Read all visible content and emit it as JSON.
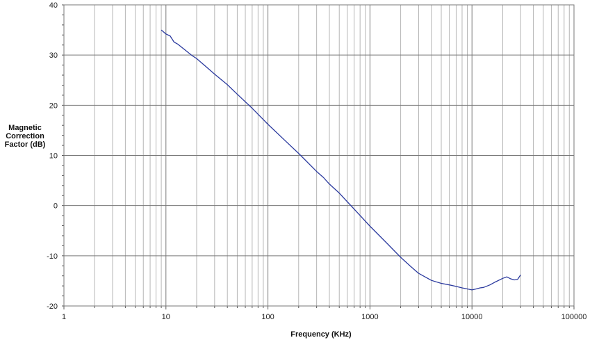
{
  "chart_data": {
    "type": "line",
    "title": "",
    "xlabel": "Frequency (KHz)",
    "ylabel_lines": [
      "Magnetic",
      "Correction",
      "Factor (dB)"
    ],
    "x_scale": "log",
    "xlim": [
      1,
      100000
    ],
    "ylim": [
      -20,
      40
    ],
    "x_ticks": [
      1,
      10,
      100,
      1000,
      10000,
      100000
    ],
    "x_tick_labels": [
      "1",
      "10",
      "100",
      "1000",
      "10000",
      "100000"
    ],
    "y_ticks": [
      -20,
      -10,
      0,
      10,
      20,
      30,
      40
    ],
    "y_tick_labels": [
      "-20",
      "-10",
      "0",
      "10",
      "20",
      "30",
      "40"
    ],
    "grid": true,
    "line_color": "#2b3a9e",
    "series": [
      {
        "x": [
          9,
          10,
          11,
          12,
          13,
          15,
          18,
          20,
          25,
          30,
          40,
          50,
          70,
          100,
          150,
          200,
          300,
          350,
          400,
          500,
          700,
          1000,
          1500,
          2000,
          2500,
          3000,
          4000,
          5000,
          6000,
          7000,
          8000,
          9000,
          10000,
          11000,
          12000,
          13000,
          15000,
          17000,
          20000,
          22000,
          24000,
          26000,
          28000,
          30000
        ],
        "y": [
          35,
          34.2,
          33.8,
          32.6,
          32.2,
          31.2,
          29.9,
          29.3,
          27.6,
          26.2,
          24.1,
          22.2,
          19.4,
          16.2,
          12.8,
          10.4,
          6.8,
          5.6,
          4.3,
          2.5,
          -0.7,
          -4.1,
          -7.7,
          -10.3,
          -12.1,
          -13.5,
          -14.9,
          -15.5,
          -15.8,
          -16.1,
          -16.4,
          -16.6,
          -16.8,
          -16.6,
          -16.4,
          -16.3,
          -15.8,
          -15.2,
          -14.5,
          -14.2,
          -14.6,
          -14.8,
          -14.7,
          -13.8
        ]
      }
    ]
  }
}
